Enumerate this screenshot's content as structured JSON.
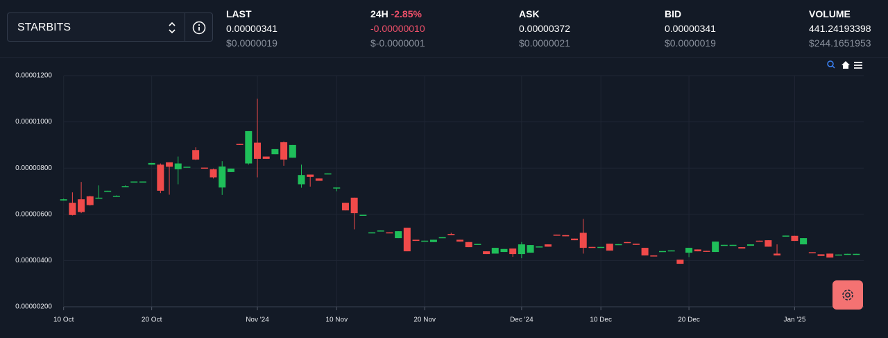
{
  "selector": {
    "label": "STARBITS"
  },
  "stats": [
    {
      "label": "LAST",
      "value": "0.00000341",
      "usd": "$0.0000019"
    },
    {
      "label": "24H",
      "change": "-2.85%",
      "value": "-0.00000010",
      "usd": "$-0.0000001"
    },
    {
      "label": "ASK",
      "value": "0.00000372",
      "usd": "$0.0000021"
    },
    {
      "label": "BID",
      "value": "0.00000341",
      "usd": "$0.0000019"
    },
    {
      "label": "VOLUME",
      "value": "441.24193398",
      "usd": "$244.1651953"
    }
  ],
  "chart_data": {
    "type": "candlestick",
    "up_color": "#1fbf5a",
    "down_color": "#f04a4a",
    "grid": true,
    "x": [
      "2024-10-10",
      "2024-10-11",
      "2024-10-12",
      "2024-10-13",
      "2024-10-14",
      "2024-10-15",
      "2024-10-16",
      "2024-10-17",
      "2024-10-18",
      "2024-10-19",
      "2024-10-20",
      "2024-10-21",
      "2024-10-22",
      "2024-10-23",
      "2024-10-24",
      "2024-10-25",
      "2024-10-26",
      "2024-10-27",
      "2024-10-28",
      "2024-10-29",
      "2024-10-30",
      "2024-10-31",
      "2024-11-01",
      "2024-11-02",
      "2024-11-03",
      "2024-11-04",
      "2024-11-05",
      "2024-11-06",
      "2024-11-07",
      "2024-11-08",
      "2024-11-09",
      "2024-11-10",
      "2024-11-11",
      "2024-11-12",
      "2024-11-13",
      "2024-11-14",
      "2024-11-15",
      "2024-11-16",
      "2024-11-17",
      "2024-11-18",
      "2024-11-19",
      "2024-11-20",
      "2024-11-21",
      "2024-11-22",
      "2024-11-23",
      "2024-11-24",
      "2024-11-25",
      "2024-11-26",
      "2024-11-27",
      "2024-11-28",
      "2024-11-29",
      "2024-11-30",
      "2024-12-01",
      "2024-12-02",
      "2024-12-03",
      "2024-12-04",
      "2024-12-05",
      "2024-12-06",
      "2024-12-07",
      "2024-12-08",
      "2024-12-09",
      "2024-12-10",
      "2024-12-11",
      "2024-12-12",
      "2024-12-13",
      "2024-12-14",
      "2024-12-15",
      "2024-12-16",
      "2024-12-17",
      "2024-12-18",
      "2024-12-19",
      "2024-12-20",
      "2024-12-21",
      "2024-12-22",
      "2024-12-23",
      "2024-12-24",
      "2024-12-25",
      "2024-12-26",
      "2024-12-27",
      "2024-12-28",
      "2024-12-29",
      "2024-12-30",
      "2024-12-31",
      "2025-01-01",
      "2025-01-02",
      "2025-01-03",
      "2025-01-04",
      "2025-01-05",
      "2025-01-06",
      "2025-01-07",
      "2025-01-08"
    ],
    "open": [
      6.6e-06,
      6.5e-06,
      6.65e-06,
      6.78e-06,
      6.7e-06,
      7e-06,
      6.78e-06,
      7.2e-06,
      7.4e-06,
      7.4e-06,
      8.15e-06,
      8.15e-06,
      8.25e-06,
      7.95e-06,
      8.04e-06,
      8.78e-06,
      8.02e-06,
      7.95e-06,
      7.16e-06,
      7.83e-06,
      9.05e-06,
      8.2e-06,
      9.1e-06,
      8.5e-06,
      8.6e-06,
      9.12e-06,
      8.45e-06,
      7.3e-06,
      7.72e-06,
      7.55e-06,
      7.75e-06,
      7.14e-06,
      6.5e-06,
      6.72e-06,
      5.96e-06,
      5.2e-06,
      5.28e-06,
      5.22e-06,
      4.97e-06,
      5.42e-06,
      4.9e-06,
      4.84e-06,
      4.8e-06,
      4.99e-06,
      5.15e-06,
      4.9e-06,
      4.8e-06,
      4.7e-06,
      4.4e-06,
      4.3e-06,
      4.37e-06,
      4.52e-06,
      4.28e-06,
      4.34e-06,
      4.59e-06,
      4.7e-06,
      5.12e-06,
      5.1e-06,
      4.95e-06,
      5.2e-06,
      4.59e-06,
      4.58e-06,
      4.73e-06,
      4.69e-06,
      4.8e-06,
      4.73e-06,
      4.55e-06,
      4.22e-06,
      4.39e-06,
      4.42e-06,
      4.04e-06,
      4.34e-06,
      4.48e-06,
      4.42e-06,
      4.37e-06,
      4.66e-06,
      4.67e-06,
      4.58e-06,
      4.64e-06,
      4.86e-06,
      4.88e-06,
      4.3e-06,
      5.06e-06,
      5.07e-06,
      4.7e-06,
      4.36e-06,
      4.27e-06,
      4.3e-06,
      4.24e-06,
      4.27e-06,
      4.27e-06
    ],
    "high": [
      6.68e-06,
      6.95e-06,
      7.4e-06,
      6.8e-06,
      7.25e-06,
      7.02e-06,
      6.82e-06,
      7.25e-06,
      7.42e-06,
      7.42e-06,
      8.22e-06,
      8.2e-06,
      8.25e-06,
      8.5e-06,
      8.06e-06,
      8.9e-06,
      8.02e-06,
      7.98e-06,
      8.3e-06,
      7.98e-06,
      9.05e-06,
      9.6e-06,
      1.1e-05,
      8.5e-06,
      8.82e-06,
      9.15e-06,
      9e-06,
      8.15e-06,
      7.72e-06,
      7.55e-06,
      7.77e-06,
      7.16e-06,
      6.5e-06,
      6.72e-06,
      5.98e-06,
      5.22e-06,
      5.3e-06,
      5.22e-06,
      5.27e-06,
      5.42e-06,
      4.9e-06,
      4.86e-06,
      4.9e-06,
      5.01e-06,
      5.2e-06,
      4.9e-06,
      4.8e-06,
      4.72e-06,
      4.4e-06,
      4.55e-06,
      4.5e-06,
      4.52e-06,
      4.8e-06,
      4.67e-06,
      4.61e-06,
      4.7e-06,
      5.12e-06,
      5.1e-06,
      4.95e-06,
      5.8e-06,
      4.59e-06,
      4.59e-06,
      4.73e-06,
      4.71e-06,
      4.8e-06,
      4.73e-06,
      4.55e-06,
      4.22e-06,
      4.41e-06,
      4.44e-06,
      4.04e-06,
      4.55e-06,
      4.48e-06,
      4.42e-06,
      4.82e-06,
      4.68e-06,
      4.68e-06,
      4.58e-06,
      4.7e-06,
      4.86e-06,
      4.88e-06,
      4.7e-06,
      5.08e-06,
      5.07e-06,
      4.97e-06,
      4.36e-06,
      4.27e-06,
      4.3e-06,
      4.26e-06,
      4.29e-06,
      4.29e-06
    ],
    "low": [
      6.6e-06,
      5.95e-06,
      6.05e-06,
      6.38e-06,
      6.68e-06,
      6.98e-06,
      6.78e-06,
      7.2e-06,
      7.38e-06,
      7.38e-06,
      8.15e-06,
      6.92e-06,
      6.85e-06,
      7.3e-06,
      8.02e-06,
      8.35e-06,
      7.98e-06,
      7.55e-06,
      6.84e-06,
      7.83e-06,
      9e-06,
      8.15e-06,
      7.6e-06,
      8.4e-06,
      8.6e-06,
      8.1e-06,
      8.45e-06,
      7.15e-06,
      7.2e-06,
      7.45e-06,
      7.75e-06,
      7e-06,
      6.17e-06,
      5.35e-06,
      5.96e-06,
      5.18e-06,
      5.28e-06,
      5.2e-06,
      4.97e-06,
      4.4e-06,
      4.85e-06,
      4.84e-06,
      4.8e-06,
      4.99e-06,
      5.1e-06,
      4.82e-06,
      4.58e-06,
      4.7e-06,
      4.28e-06,
      4.3e-06,
      4.37e-06,
      4.16e-06,
      4.1e-06,
      4.34e-06,
      4.59e-06,
      4.6e-06,
      5.08e-06,
      5.05e-06,
      4.88e-06,
      4.3e-06,
      4.57e-06,
      4.57e-06,
      4.43e-06,
      4.69e-06,
      4.76e-06,
      4.68e-06,
      4.22e-06,
      4.2e-06,
      4.39e-06,
      4.42e-06,
      3.86e-06,
      4.15e-06,
      4.4e-06,
      4.38e-06,
      4.37e-06,
      4.66e-06,
      4.67e-06,
      4.52e-06,
      4.64e-06,
      4.82e-06,
      4.6e-06,
      4.22e-06,
      5.06e-06,
      4.85e-06,
      4.7e-06,
      4.32e-06,
      4.2e-06,
      4.13e-06,
      4.24e-06,
      4.27e-06,
      4.27e-06
    ],
    "close": [
      6.65e-06,
      5.97e-06,
      6.1e-06,
      6.4e-06,
      6.72e-06,
      7.02e-06,
      6.8e-06,
      7.22e-06,
      7.42e-06,
      7.42e-06,
      8.22e-06,
      7.02e-06,
      8.06e-06,
      8.2e-06,
      8.06e-06,
      8.37e-06,
      7.98e-06,
      7.6e-06,
      8.07e-06,
      7.98e-06,
      9e-06,
      9.6e-06,
      8.4e-06,
      8.4e-06,
      8.82e-06,
      8.37e-06,
      9e-06,
      7.7e-06,
      7.62e-06,
      7.45e-06,
      7.77e-06,
      7.16e-06,
      6.17e-06,
      6.05e-06,
      5.98e-06,
      5.22e-06,
      5.3e-06,
      5.2e-06,
      5.27e-06,
      4.4e-06,
      4.85e-06,
      4.86e-06,
      4.9e-06,
      5.01e-06,
      5.1e-06,
      4.82e-06,
      4.58e-06,
      4.72e-06,
      4.28e-06,
      4.55e-06,
      4.5e-06,
      4.28e-06,
      4.7e-06,
      4.67e-06,
      4.61e-06,
      4.6e-06,
      5.08e-06,
      5.05e-06,
      4.88e-06,
      4.55e-06,
      4.57e-06,
      4.59e-06,
      4.43e-06,
      4.71e-06,
      4.76e-06,
      4.68e-06,
      4.22e-06,
      4.2e-06,
      4.41e-06,
      4.44e-06,
      3.86e-06,
      4.55e-06,
      4.4e-06,
      4.38e-06,
      4.82e-06,
      4.68e-06,
      4.68e-06,
      4.52e-06,
      4.7e-06,
      4.82e-06,
      4.6e-06,
      4.22e-06,
      5.08e-06,
      4.85e-06,
      4.97e-06,
      4.32e-06,
      4.2e-06,
      4.13e-06,
      4.26e-06,
      4.29e-06,
      4.29e-06
    ],
    "xlim": [
      "2024-10-09",
      "2025-01-09"
    ],
    "xticks": [
      {
        "value": "2024-10-10",
        "label": "10 Oct"
      },
      {
        "value": "2024-10-20",
        "label": "20 Oct"
      },
      {
        "value": "2024-11-01",
        "label": "Nov '24"
      },
      {
        "value": "2024-11-10",
        "label": "10 Nov"
      },
      {
        "value": "2024-11-20",
        "label": "20 Nov"
      },
      {
        "value": "2024-12-01",
        "label": "Dec '24"
      },
      {
        "value": "2024-12-10",
        "label": "10 Dec"
      },
      {
        "value": "2024-12-20",
        "label": "20 Dec"
      },
      {
        "value": "2025-01-01",
        "label": "Jan '25"
      }
    ],
    "ylim": [
      2e-06,
      1.2e-05
    ],
    "yticks": [
      {
        "value": 2e-06,
        "label": "0.00000200"
      },
      {
        "value": 4e-06,
        "label": "0.00000400"
      },
      {
        "value": 6e-06,
        "label": "0.00000600"
      },
      {
        "value": 8e-06,
        "label": "0.00000800"
      },
      {
        "value": 1e-05,
        "label": "0.00001000"
      },
      {
        "value": 1.2e-05,
        "label": "0.00001200"
      }
    ]
  }
}
